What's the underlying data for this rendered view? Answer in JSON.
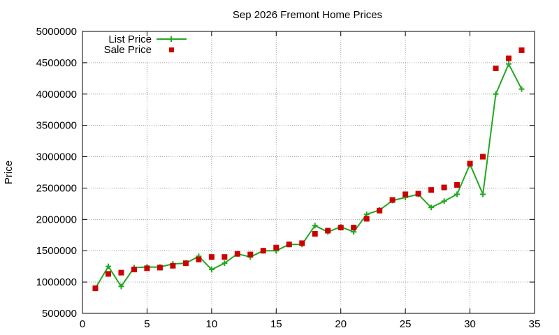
{
  "chart_data": {
    "type": "line",
    "title": "Sep 2026 Fremont Home Prices",
    "xlabel": "",
    "ylabel": "Price",
    "xlim": [
      0,
      35
    ],
    "ylim": [
      500000,
      5000000
    ],
    "xticks": [
      0,
      5,
      10,
      15,
      20,
      25,
      30,
      35
    ],
    "yticks": [
      500000,
      1000000,
      1500000,
      2000000,
      2500000,
      3000000,
      3500000,
      4000000,
      4500000,
      5000000
    ],
    "grid": true,
    "legend_position": "top-left",
    "series": [
      {
        "name": "List Price",
        "style": "line+cross",
        "color": "#22a822",
        "x": [
          1,
          2,
          3,
          4,
          5,
          6,
          7,
          8,
          9,
          10,
          11,
          12,
          13,
          14,
          15,
          16,
          17,
          18,
          19,
          20,
          21,
          22,
          23,
          24,
          25,
          26,
          27,
          28,
          29,
          30,
          31,
          32,
          33,
          34
        ],
        "values": [
          900000,
          1250000,
          930000,
          1230000,
          1240000,
          1240000,
          1290000,
          1300000,
          1410000,
          1200000,
          1300000,
          1450000,
          1400000,
          1500000,
          1500000,
          1600000,
          1600000,
          1900000,
          1800000,
          1880000,
          1800000,
          2080000,
          2150000,
          2300000,
          2350000,
          2400000,
          2190000,
          2290000,
          2400000,
          2880000,
          2400000,
          4000000,
          4480000,
          4080000
        ]
      },
      {
        "name": "Sale Price",
        "style": "square",
        "color": "#cc0000",
        "x": [
          1,
          2,
          3,
          4,
          5,
          6,
          7,
          8,
          9,
          10,
          11,
          12,
          13,
          14,
          15,
          16,
          17,
          18,
          19,
          20,
          21,
          22,
          23,
          24,
          25,
          26,
          27,
          28,
          29,
          30,
          31,
          32,
          33,
          34
        ],
        "values": [
          900000,
          1130000,
          1150000,
          1200000,
          1220000,
          1230000,
          1260000,
          1300000,
          1360000,
          1400000,
          1400000,
          1450000,
          1440000,
          1500000,
          1550000,
          1600000,
          1620000,
          1770000,
          1820000,
          1870000,
          1870000,
          2010000,
          2140000,
          2310000,
          2400000,
          2410000,
          2470000,
          2510000,
          2550000,
          2890000,
          3000000,
          4410000,
          4570000,
          4700000
        ]
      }
    ]
  }
}
